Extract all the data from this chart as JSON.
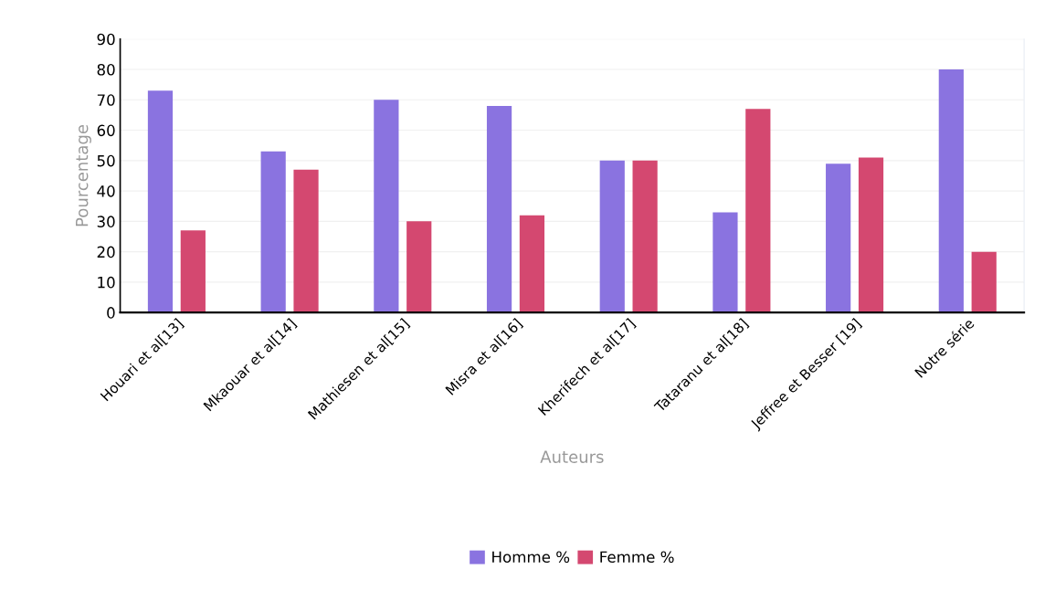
{
  "chart_data": {
    "type": "bar",
    "xlabel": "Auteurs",
    "ylabel": "Pourcentage",
    "categories": [
      "Houari et al[13]",
      "Mkaouar et al[14]",
      "Mathiesen et al[15]",
      "Misra et al[16]",
      "Kherifech et al[17]",
      "Tataranu et al[18]",
      "Jeffree et Besser [19]",
      "Notre série"
    ],
    "series": [
      {
        "name": "Homme %",
        "color": "#8a73e0",
        "values": [
          73,
          53,
          70,
          68,
          50,
          33,
          49,
          80
        ]
      },
      {
        "name": "Femme %",
        "color": "#d44870",
        "values": [
          27,
          47,
          30,
          32,
          50,
          67,
          51,
          20
        ]
      }
    ],
    "ylim": [
      0,
      90
    ],
    "yticks": [
      0,
      10,
      20,
      30,
      40,
      50,
      60,
      70,
      80,
      90
    ],
    "grid": "y",
    "legend": "bottom"
  }
}
